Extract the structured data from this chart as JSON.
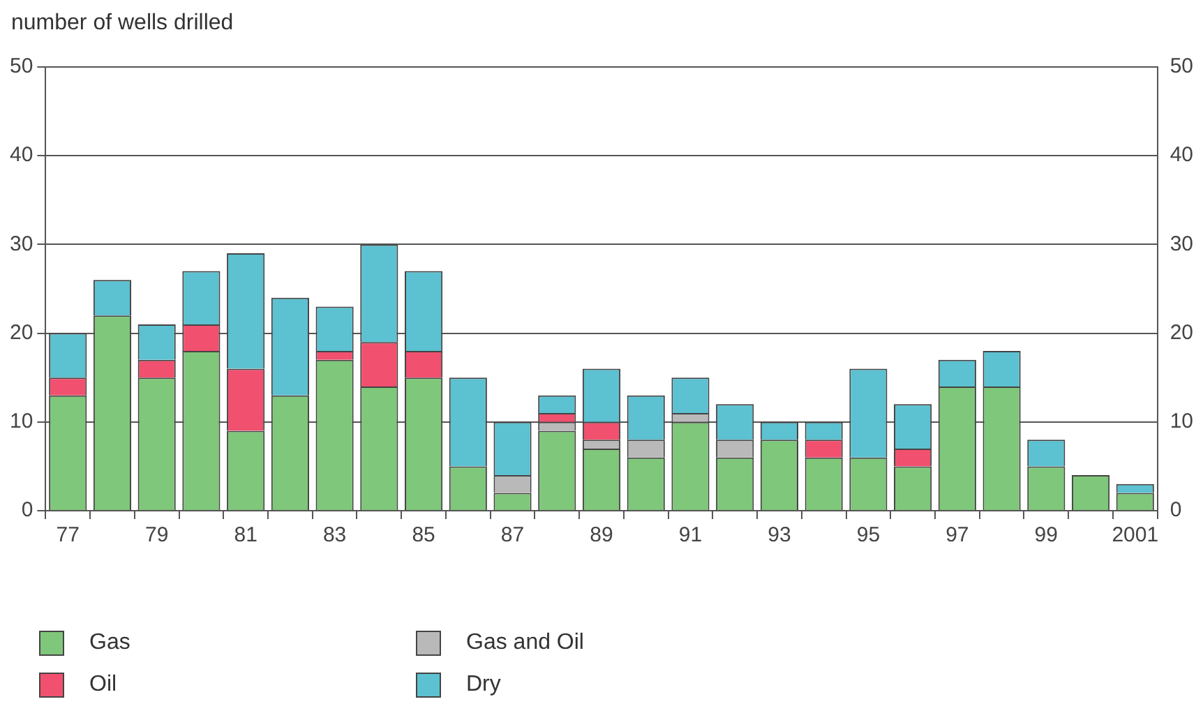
{
  "chart_data": {
    "type": "bar",
    "stacked": true,
    "ylabel": "number of wells drilled",
    "categories": [
      "77",
      null,
      "79",
      null,
      "81",
      null,
      "83",
      null,
      "85",
      null,
      "87",
      null,
      "89",
      null,
      "91",
      null,
      "93",
      null,
      "95",
      null,
      "97",
      null,
      "99",
      null,
      "2001"
    ],
    "series": [
      {
        "name": "Gas",
        "color": "#7fc77a",
        "values": [
          13,
          22,
          15,
          18,
          9,
          13,
          17,
          14,
          15,
          5,
          2,
          9,
          7,
          6,
          10,
          6,
          8,
          6,
          6,
          5,
          14,
          14,
          5,
          4,
          2
        ]
      },
      {
        "name": "Gas and Oil",
        "color": "#b9b9b9",
        "values": [
          0,
          0,
          0,
          0,
          0,
          0,
          0,
          0,
          0,
          0,
          2,
          1,
          1,
          2,
          1,
          2,
          0,
          0,
          0,
          0,
          0,
          0,
          0,
          0,
          0
        ]
      },
      {
        "name": "Oil",
        "color": "#f2506f",
        "values": [
          2,
          0,
          2,
          3,
          7,
          0,
          1,
          5,
          3,
          0,
          0,
          1,
          2,
          0,
          0,
          0,
          0,
          2,
          0,
          2,
          0,
          0,
          0,
          0,
          0
        ]
      },
      {
        "name": "Dry",
        "color": "#5cc1d1",
        "values": [
          5,
          4,
          4,
          6,
          13,
          11,
          5,
          11,
          9,
          10,
          6,
          2,
          6,
          5,
          4,
          4,
          2,
          2,
          10,
          5,
          3,
          4,
          3,
          0,
          1
        ]
      }
    ],
    "ylim": [
      0,
      50
    ],
    "yticks": [
      0,
      10,
      20,
      30,
      40,
      50
    ],
    "y2lim": [
      0,
      50
    ],
    "y2ticks": [
      0,
      10,
      20,
      30,
      40,
      50
    ],
    "grid": "y",
    "legend": "bottom left"
  }
}
